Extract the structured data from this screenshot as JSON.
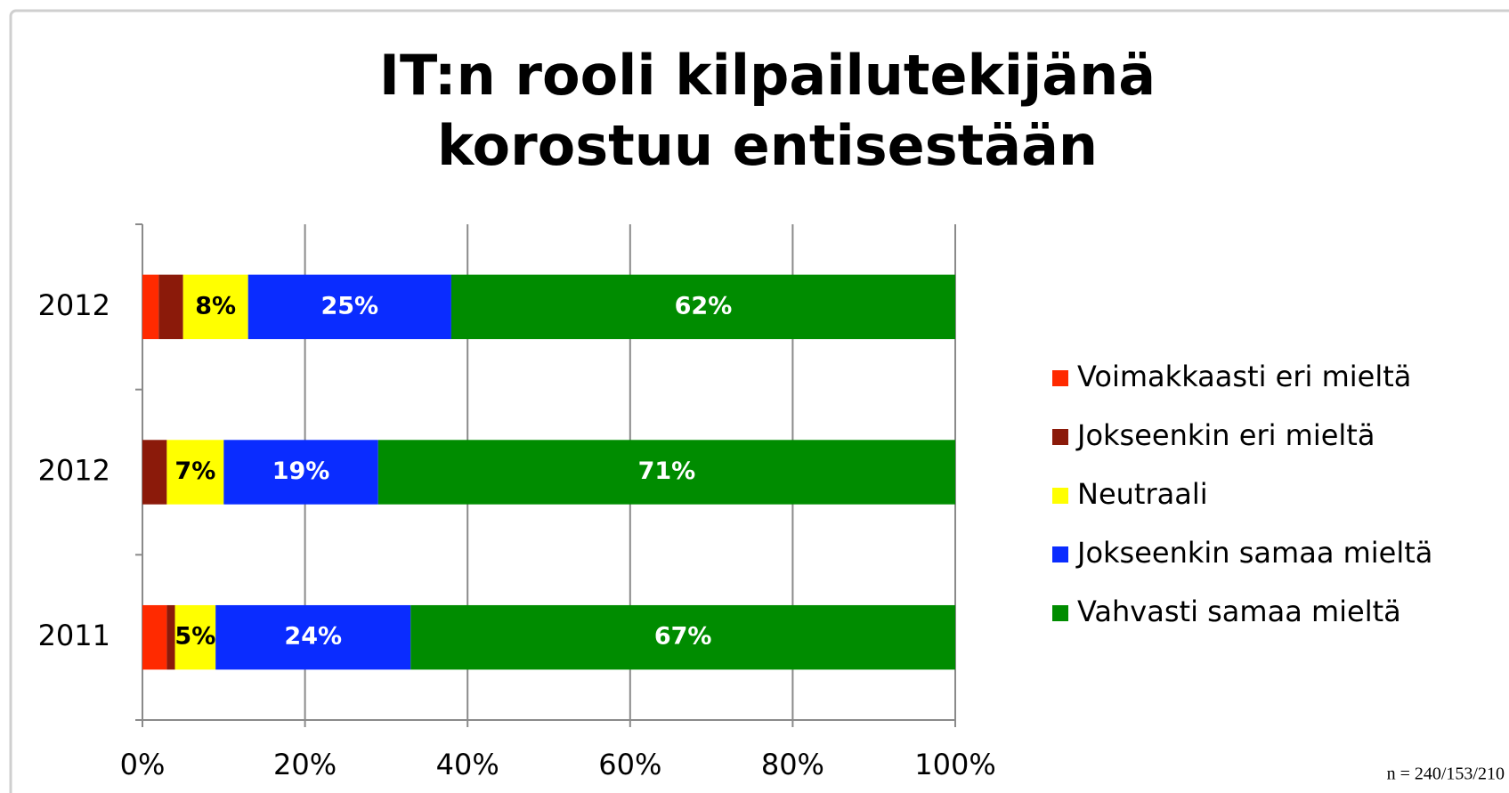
{
  "chart_data": {
    "type": "stacked_bar_horizontal",
    "title": [
      "IT:n rooli kilpailutekijänä",
      "korostuu entisestään"
    ],
    "categories": [
      "2012",
      "2012",
      "2011"
    ],
    "series": [
      {
        "name": "Voimakkaasti eri mieltä",
        "color": "#ff2a00",
        "values": [
          2,
          0,
          3
        ],
        "value_labels": [
          null,
          null,
          null
        ]
      },
      {
        "name": "Jokseenkin eri mieltä",
        "color": "#8b1a0a",
        "values": [
          3,
          3,
          1
        ],
        "value_labels": [
          null,
          null,
          null
        ]
      },
      {
        "name": "Neutraali",
        "color": "#ffff00",
        "values": [
          8,
          7,
          5
        ],
        "value_labels": [
          "8%",
          "7%",
          "5%"
        ]
      },
      {
        "name": "Jokseenkin samaa mieltä",
        "color": "#0a2cff",
        "values": [
          25,
          19,
          24
        ],
        "value_labels": [
          "25%",
          "19%",
          "24%"
        ]
      },
      {
        "name": "Vahvasti samaa mieltä",
        "color": "#008c00",
        "values": [
          62,
          71,
          67
        ],
        "value_labels": [
          "62%",
          "71%",
          "67%"
        ]
      }
    ],
    "xlim": [
      0,
      100
    ],
    "xticks": [
      {
        "value": 0,
        "label": "0%"
      },
      {
        "value": 20,
        "label": "20%"
      },
      {
        "value": 40,
        "label": "40%"
      },
      {
        "value": 60,
        "label": "60%"
      },
      {
        "value": 80,
        "label": "80%"
      },
      {
        "value": 100,
        "label": "100%"
      }
    ],
    "grid": true,
    "legend": "right",
    "footnote": "n = 240/153/210"
  }
}
